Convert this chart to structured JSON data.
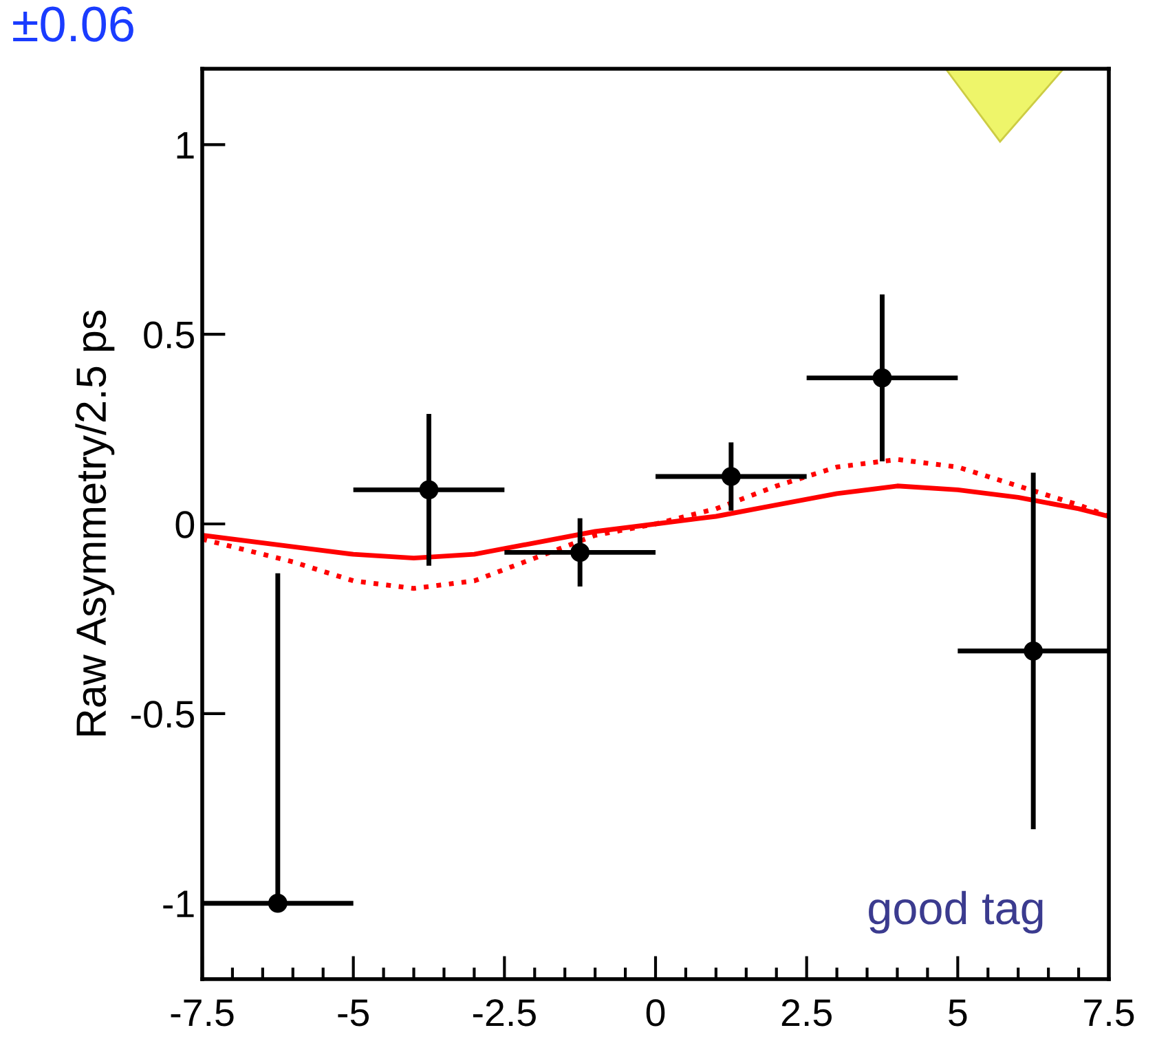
{
  "chart_data": {
    "type": "scatter",
    "ylabel": "Raw Asymmetry/2.5 ps",
    "xlim": [
      -7.5,
      7.5
    ],
    "ylim": [
      -1.2,
      1.2
    ],
    "xticks": [
      -7.5,
      -5,
      -2.5,
      0,
      2.5,
      5,
      7.5
    ],
    "yticks": [
      -1,
      -0.5,
      0,
      0.5,
      1
    ],
    "grid": false,
    "legend": false,
    "annotations": [
      "±0.06",
      "good tag"
    ],
    "series": [
      {
        "type": "line",
        "color": "#ff0000",
        "line_style": "solid",
        "marker": "none",
        "x": [
          -7.5,
          -6,
          -5,
          -4,
          -3,
          -2,
          -1,
          0,
          1,
          2,
          3,
          4,
          5,
          6,
          7,
          7.5
        ],
        "values": [
          -0.03,
          -0.06,
          -0.08,
          -0.09,
          -0.08,
          -0.05,
          -0.02,
          0.0,
          0.02,
          0.05,
          0.08,
          0.1,
          0.09,
          0.07,
          0.04,
          0.02
        ]
      },
      {
        "type": "line",
        "color": "#ff0000",
        "line_style": "dotted",
        "marker": "none",
        "x": [
          -7.5,
          -6,
          -5,
          -4,
          -3,
          -2,
          -1,
          0,
          1,
          2,
          3,
          4,
          5,
          6,
          7,
          7.5
        ],
        "values": [
          -0.04,
          -0.1,
          -0.15,
          -0.17,
          -0.15,
          -0.09,
          -0.03,
          0.0,
          0.04,
          0.1,
          0.15,
          0.17,
          0.15,
          0.1,
          0.05,
          0.02
        ]
      },
      {
        "color": "#000000",
        "marker": "circle",
        "x": [
          -6.25,
          -3.75,
          -1.25,
          1.25,
          3.75,
          6.25
        ],
        "values": [
          -1.0,
          0.09,
          -0.075,
          0.125,
          0.385,
          -0.335
        ],
        "xerrors": [
          1.25,
          1.25,
          1.25,
          1.25,
          1.25,
          1.25
        ],
        "errors": [
          [
            -1.0,
            -0.13
          ],
          0.2,
          0.09,
          0.09,
          0.22,
          0.47
        ]
      }
    ]
  }
}
